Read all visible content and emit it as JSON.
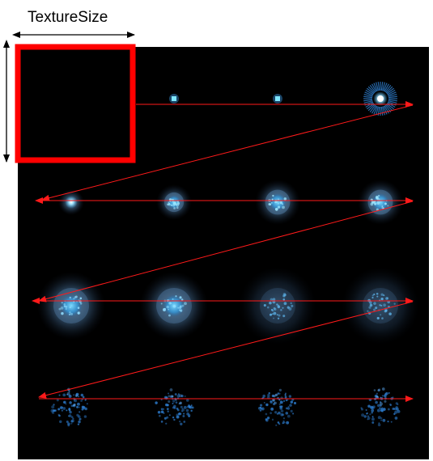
{
  "diagram": {
    "label_texture_size": "TextureSize",
    "colors": {
      "sheet_background": "#000000",
      "highlight_box": "#ff0000",
      "scan_arrows": "#ff1a1a",
      "dimension_arrows": "#000000",
      "particle_core": "#e6fbff",
      "particle_glow": "#5fc8ff"
    },
    "grid": {
      "rows": 4,
      "columns": 4
    },
    "frames": [
      {
        "stage": "empty"
      },
      {
        "stage": "spark"
      },
      {
        "stage": "spark"
      },
      {
        "stage": "ring"
      },
      {
        "stage": "small-glow"
      },
      {
        "stage": "glow"
      },
      {
        "stage": "glow"
      },
      {
        "stage": "glow"
      },
      {
        "stage": "large-glow"
      },
      {
        "stage": "large-glow"
      },
      {
        "stage": "fading-glow"
      },
      {
        "stage": "fading-glow"
      },
      {
        "stage": "dust"
      },
      {
        "stage": "dust"
      },
      {
        "stage": "dust"
      },
      {
        "stage": "dust"
      }
    ]
  }
}
